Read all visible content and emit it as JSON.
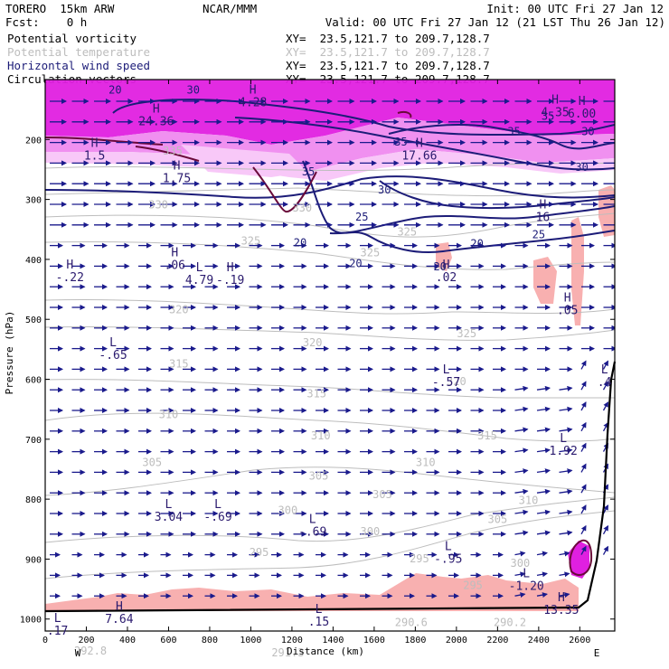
{
  "header": {
    "model": "TORERO  15km ARW",
    "org": "NCAR/MMM",
    "init": "Init: 00 UTC Fri 27 Jan 12",
    "fcst": "Fcst:    0 h",
    "valid": "Valid: 00 UTC Fri 27 Jan 12 (21 LST Thu 26 Jan 12)"
  },
  "legend": [
    {
      "name": "Potential vorticity",
      "color": "#000000",
      "xy": "XY=  23.5,121.7 to 209.7,128.7",
      "xycolor": "#000000"
    },
    {
      "name": "Potential temperature",
      "color": "#bdbdbd",
      "xy": "XY=  23.5,121.7 to 209.7,128.7",
      "xycolor": "#bdbdbd"
    },
    {
      "name": "Horizontal wind speed",
      "color": "#1c1c78",
      "xy": "XY=  23.5,121.7 to 209.7,128.7",
      "xycolor": "#000000"
    },
    {
      "name": "Circulation vectors",
      "color": "#000000",
      "xy": "XY=  23.5,121.7 to 209.7,128.7",
      "xycolor": "#000000"
    }
  ],
  "colors": {
    "pv_high": "#e020e0",
    "pv_mid": "#f090f0",
    "pv_low": "#f8c8f8",
    "pv_surface": "#f8b0b0",
    "theta": "#bdbdbd",
    "wind": "#1c1c78",
    "vectors": "#1a1a8c",
    "terrain": "#000000",
    "pv_contour": "#6a0a3a"
  },
  "chart_data": {
    "type": "cross-section",
    "xlabel": "Distance (km)",
    "ylabel": "Pressure (hPa)",
    "xlim": [
      0,
      2770
    ],
    "ylim": [
      1020,
      100
    ],
    "xticks": [
      "0",
      "200",
      "400",
      "600",
      "800",
      "1000",
      "1200",
      "1400",
      "1600",
      "1800",
      "2000",
      "2200",
      "2400",
      "2600"
    ],
    "yticks": [
      "200",
      "300",
      "400",
      "500",
      "600",
      "700",
      "800",
      "900",
      "1000"
    ],
    "left_end": "W",
    "right_end": "E",
    "theta_labels": [
      {
        "x": 620,
        "p": 225,
        "t": "335"
      },
      {
        "x": 550,
        "p": 315,
        "t": "330"
      },
      {
        "x": 1250,
        "p": 320,
        "t": "330"
      },
      {
        "x": 1000,
        "p": 375,
        "t": "325"
      },
      {
        "x": 1760,
        "p": 360,
        "t": "325"
      },
      {
        "x": 1580,
        "p": 395,
        "t": "325"
      },
      {
        "x": 650,
        "p": 490,
        "t": "320"
      },
      {
        "x": 1300,
        "p": 545,
        "t": "320"
      },
      {
        "x": 2050,
        "p": 530,
        "t": "325"
      },
      {
        "x": 650,
        "p": 580,
        "t": "315"
      },
      {
        "x": 1320,
        "p": 630,
        "t": "315"
      },
      {
        "x": 2000,
        "p": 610,
        "t": "320"
      },
      {
        "x": 600,
        "p": 665,
        "t": "310"
      },
      {
        "x": 1340,
        "p": 700,
        "t": "310"
      },
      {
        "x": 2150,
        "p": 700,
        "t": "315"
      },
      {
        "x": 520,
        "p": 745,
        "t": "305"
      },
      {
        "x": 1330,
        "p": 767,
        "t": "305"
      },
      {
        "x": 1850,
        "p": 745,
        "t": "310"
      },
      {
        "x": 1180,
        "p": 825,
        "t": "300"
      },
      {
        "x": 1640,
        "p": 798,
        "t": "305"
      },
      {
        "x": 2350,
        "p": 808,
        "t": "310"
      },
      {
        "x": 1040,
        "p": 895,
        "t": "295"
      },
      {
        "x": 1580,
        "p": 860,
        "t": "300"
      },
      {
        "x": 2200,
        "p": 840,
        "t": "305"
      },
      {
        "x": 1820,
        "p": 905,
        "t": "295"
      },
      {
        "x": 2080,
        "p": 950,
        "t": "295"
      },
      {
        "x": 2310,
        "p": 913,
        "t": "300"
      },
      {
        "x": 1780,
        "p": 1012,
        "t": "290.6"
      },
      {
        "x": 2260,
        "p": 1012,
        "t": "290.2"
      },
      {
        "x": 220,
        "p": 1059,
        "t": "292.8"
      },
      {
        "x": 1180,
        "p": 1062,
        "t": "291.3"
      }
    ],
    "wind_labels": [
      {
        "x": 340,
        "p": 123,
        "t": "20"
      },
      {
        "x": 720,
        "p": 123,
        "t": "30"
      },
      {
        "x": 2445,
        "p": 167,
        "t": "35"
      },
      {
        "x": 2280,
        "p": 193,
        "t": "35"
      },
      {
        "x": 2640,
        "p": 193,
        "t": "30"
      },
      {
        "x": 2610,
        "p": 252,
        "t": "30"
      },
      {
        "x": 1730,
        "p": 210,
        "t": "35"
      },
      {
        "x": 1280,
        "p": 260,
        "t": "35"
      },
      {
        "x": 1650,
        "p": 290,
        "t": "30"
      },
      {
        "x": 1540,
        "p": 335,
        "t": "25"
      },
      {
        "x": 2400,
        "p": 365,
        "t": "25"
      },
      {
        "x": 1240,
        "p": 378,
        "t": "20"
      },
      {
        "x": 1510,
        "p": 413,
        "t": "20"
      },
      {
        "x": 1920,
        "p": 418,
        "t": "20"
      },
      {
        "x": 2100,
        "p": 380,
        "t": "20"
      }
    ],
    "extrema": [
      {
        "kind": "H",
        "value": "4.28",
        "x": 1010,
        "p": 123
      },
      {
        "kind": "H",
        "value": "24.36",
        "x": 540,
        "p": 155
      },
      {
        "kind": "H",
        "value": "4.35",
        "x": 2480,
        "p": 140
      },
      {
        "kind": "H",
        "value": "6.00",
        "x": 2610,
        "p": 142
      },
      {
        "kind": "H",
        "value": "1.5",
        "x": 240,
        "p": 212
      },
      {
        "kind": "H",
        "value": "1.75",
        "x": 640,
        "p": 250
      },
      {
        "kind": "H",
        "value": "17.66",
        "x": 1820,
        "p": 212
      },
      {
        "kind": "H",
        "value": "16",
        "x": 2420,
        "p": 315
      },
      {
        "kind": "H",
        "value": "-.22",
        "x": 120,
        "p": 415
      },
      {
        "kind": "H",
        "value": ".06",
        "x": 630,
        "p": 395
      },
      {
        "kind": "L",
        "value": "4.79",
        "x": 750,
        "p": 420
      },
      {
        "kind": "H",
        "value": "-.19",
        "x": 900,
        "p": 420
      },
      {
        "kind": "H",
        "value": ".02",
        "x": 1950,
        "p": 415
      },
      {
        "kind": "H",
        "value": ".05",
        "x": 2540,
        "p": 470
      },
      {
        "kind": "L",
        "value": "-.65",
        "x": 330,
        "p": 545
      },
      {
        "kind": "L",
        "value": "-.57",
        "x": 1950,
        "p": 590
      },
      {
        "kind": "L",
        "value": ".4",
        "x": 2720,
        "p": 590
      },
      {
        "kind": "L",
        "value": "1.92",
        "x": 2520,
        "p": 705
      },
      {
        "kind": "L",
        "value": "3.04",
        "x": 600,
        "p": 815
      },
      {
        "kind": "L",
        "value": "-.69",
        "x": 840,
        "p": 815
      },
      {
        "kind": "L",
        "value": "-.69",
        "x": 1300,
        "p": 840
      },
      {
        "kind": "L",
        "value": "-.95",
        "x": 1960,
        "p": 885
      },
      {
        "kind": "L",
        "value": "-1.20",
        "x": 2340,
        "p": 930
      },
      {
        "kind": "H",
        "value": "13.35",
        "x": 2510,
        "p": 970
      },
      {
        "kind": "L",
        "value": ".17",
        "x": 60,
        "p": 1005
      },
      {
        "kind": "H",
        "value": "7.64",
        "x": 360,
        "p": 985
      },
      {
        "kind": "L",
        "value": ".15",
        "x": 1330,
        "p": 990
      }
    ]
  }
}
